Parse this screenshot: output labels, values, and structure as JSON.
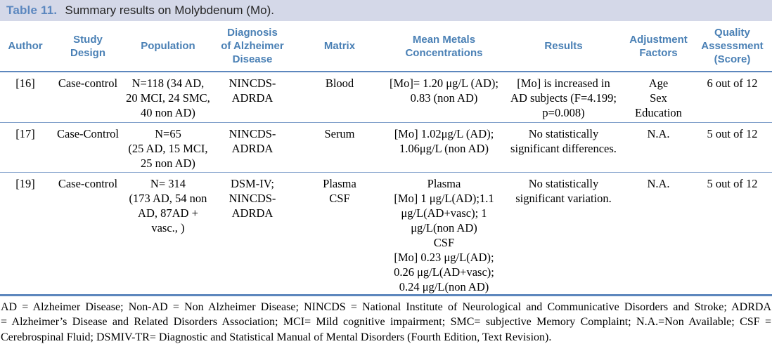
{
  "title": {
    "label": "Table 11.",
    "text": "Summary results on Molybdenum (Mo)."
  },
  "table": {
    "headers": [
      "Author",
      "Study\nDesign",
      "Population",
      "Diagnosis\nof Alzheimer\nDisease",
      "Matrix",
      "Mean Metals\nConcentrations",
      "Results",
      "Adjustment\nFactors",
      "Quality\nAssessment\n(Score)"
    ],
    "rows": [
      {
        "author": "[16]",
        "study_design": "Case-control",
        "population": "N=118 (34 AD,\n20 MCI, 24 SMC,\n40 non AD)",
        "diagnosis": "NINCDS-\nADRDA",
        "matrix": "Blood",
        "concentrations": "[Mo]= 1.20 μg/L (AD);\n0.83 (non AD)",
        "results": "[Mo] is increased in\nAD subjects (F=4.199;\np=0.008)",
        "adjustment_factors": "Age\nSex\nEducation",
        "quality": "6 out of 12"
      },
      {
        "author": "[17]",
        "study_design": "Case-Control",
        "population": "N=65\n(25 AD, 15 MCI,\n25 non AD)",
        "diagnosis": "NINCDS-\nADRDA",
        "matrix": "Serum",
        "concentrations": "[Mo] 1.02μg/L (AD);\n1.06μg/L (non AD)",
        "results": "No statistically\nsignificant differences.",
        "adjustment_factors": "N.A.",
        "quality": "5 out of 12"
      },
      {
        "author": "[19]",
        "study_design": "Case-control",
        "population": "N= 314\n(173 AD, 54 non\nAD, 87AD +\nvasc., )",
        "diagnosis": "DSM-IV;\nNINCDS-\nADRDA",
        "matrix": "Plasma\nCSF",
        "concentrations": "Plasma\n[Mo] 1 μg/L(AD);1.1\nμg/L(AD+vasc); 1\nμg/L(non AD)\nCSF\n[Mo] 0.23 μg/L(AD);\n0.26 μg/L(AD+vasc);\n0.24 μg/L(non AD)",
        "results": "No statistically\nsignificant variation.",
        "adjustment_factors": "N.A.",
        "quality": "5 out of 12"
      }
    ]
  },
  "footnote": {
    "lines": [
      "AD = Alzheimer Disease; Non-AD = Non Alzheimer Disease; NINCDS = National Institute of Neurological and Communicative Disorders and Stroke; ADRDA",
      "= Alzheimer’s Disease and Related Disorders Association; MCI= Mild cognitive impairment; SMC= subjective Memory Complaint; N.A.=Non Available; CSF =",
      "Cerebrospinal Fluid; DSMIV-TR= Diagnostic and Statistical Manual of Mental Disorders (Fourth Edition, Text Revision)."
    ]
  },
  "colors": {
    "caption_bg": "#d4d8e8",
    "caption_label_blue": "#5b87bf",
    "header_blue": "#4a80b5",
    "rule_blue": "#5d87bd"
  }
}
